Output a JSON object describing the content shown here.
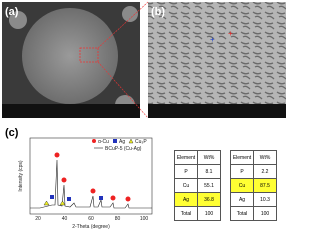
{
  "panels": {
    "a": "(a)",
    "b": "(b)",
    "c": "(c)"
  },
  "xrd": {
    "y_label": "Intensity (cps)",
    "x_label": "2-Theta (degree)",
    "xticks": [
      "20",
      "40",
      "60",
      "80",
      "100"
    ],
    "legend": [
      "α-Cu",
      "Ag",
      "Cu₃P",
      "BCuP-5 (Cu-Ag)"
    ]
  },
  "table_left": {
    "header": [
      "Element",
      "Wt%"
    ],
    "rows": [
      [
        "P",
        "8.1"
      ],
      [
        "Cu",
        "55.1"
      ],
      [
        "Ag",
        "36.8"
      ],
      [
        "Total",
        "100"
      ]
    ]
  },
  "table_right": {
    "header": [
      "Element",
      "Wt%"
    ],
    "rows": [
      [
        "P",
        "2.2"
      ],
      [
        "Cu",
        "87.5"
      ],
      [
        "Ag",
        "10.3"
      ],
      [
        "Total",
        "100"
      ]
    ]
  }
}
